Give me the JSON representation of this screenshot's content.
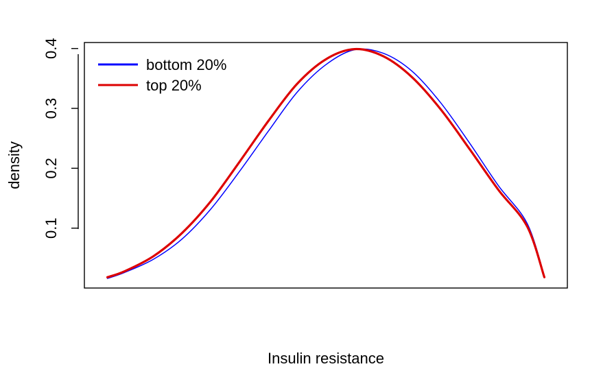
{
  "chart_data": {
    "type": "line",
    "title": "",
    "xlabel": "Insulin resistance",
    "ylabel": "density",
    "xlim": [
      -4.2,
      4.2
    ],
    "ylim": [
      0.0,
      0.41
    ],
    "y_ticks": [
      0.1,
      0.2,
      0.3,
      0.4
    ],
    "y_tick_labels": [
      "0.1",
      "0.2",
      "0.3",
      "0.4"
    ],
    "x_ticks_shown": false,
    "grid": false,
    "legend_position": "top-left",
    "series": [
      {
        "name": "bottom 20%",
        "color": "#0000ff",
        "line_width": "thin",
        "x": [
          -3.8,
          -3.5,
          -3.0,
          -2.5,
          -2.0,
          -1.5,
          -1.0,
          -0.5,
          0.0,
          0.5,
          1.0,
          1.5,
          2.0,
          2.5,
          3.0,
          3.5,
          3.8
        ],
        "y": [
          0.016,
          0.026,
          0.048,
          0.082,
          0.132,
          0.195,
          0.262,
          0.327,
          0.373,
          0.398,
          0.392,
          0.362,
          0.309,
          0.242,
          0.171,
          0.108,
          0.02
        ]
      },
      {
        "name": "top 20%",
        "color": "#dd0000",
        "line_width": "thick",
        "x": [
          -3.8,
          -3.5,
          -3.0,
          -2.5,
          -2.0,
          -1.5,
          -1.0,
          -0.5,
          0.0,
          0.5,
          1.0,
          1.5,
          2.0,
          2.5,
          3.0,
          3.5,
          3.8
        ],
        "y": [
          0.018,
          0.028,
          0.053,
          0.092,
          0.145,
          0.211,
          0.279,
          0.341,
          0.382,
          0.399,
          0.387,
          0.352,
          0.298,
          0.232,
          0.164,
          0.103,
          0.018
        ]
      }
    ]
  },
  "legend": {
    "items": [
      {
        "label": "bottom 20%",
        "color": "#0000ff"
      },
      {
        "label": "top 20%",
        "color": "#dd0000"
      }
    ]
  }
}
